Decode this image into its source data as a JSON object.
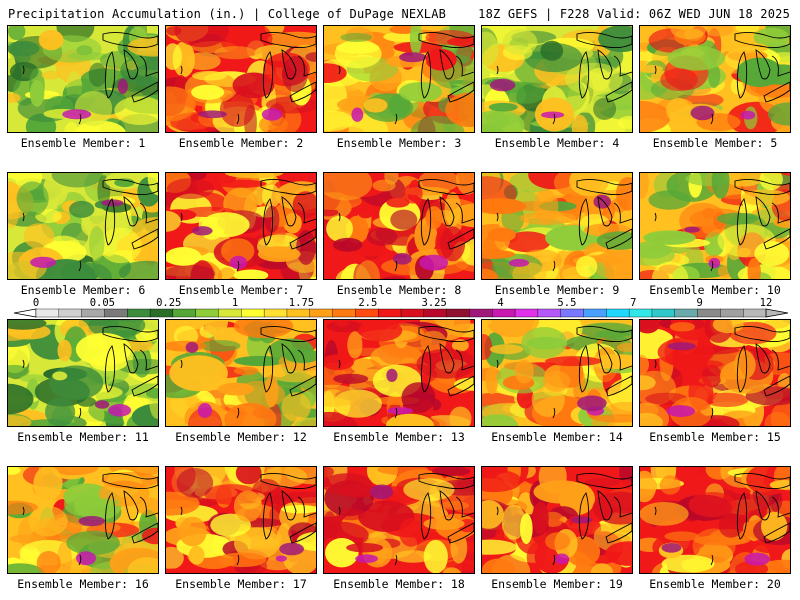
{
  "header": {
    "title": "Precipitation Accumulation (in.) | College of DuPage NEXLAB",
    "valid": "18Z GEFS | F228 Valid: 06Z WED JUN 18 2025"
  },
  "legend": {
    "labels": [
      "0",
      "0.05",
      "0.25",
      "1",
      "1.75",
      "2.5",
      "3.25",
      "4",
      "5.5",
      "7",
      "9",
      "12"
    ],
    "colors": [
      "#e8e8e8",
      "#cfcfcf",
      "#a8a8a8",
      "#7a7a7a",
      "#3c8c3c",
      "#2a6e2a",
      "#55a838",
      "#8fcc3a",
      "#d8e838",
      "#ffff33",
      "#ffe033",
      "#ffc020",
      "#ffa018",
      "#ff7a10",
      "#ff4a10",
      "#f01818",
      "#d8101e",
      "#b8082a",
      "#901030",
      "#a0187a",
      "#c818b0",
      "#e030e8",
      "#b458f8",
      "#7a78ff",
      "#4aa0ff",
      "#20d8ff",
      "#30e8e8",
      "#30c8c8",
      "#6aaaaa",
      "#8a8a8a",
      "#a0a0a0",
      "#b8b8b8"
    ]
  },
  "panels": [
    {
      "caption": "Ensemble Member: 1",
      "tone": "green"
    },
    {
      "caption": "Ensemble Member: 2",
      "tone": "red"
    },
    {
      "caption": "Ensemble Member: 3",
      "tone": "mixed"
    },
    {
      "caption": "Ensemble Member: 4",
      "tone": "green"
    },
    {
      "caption": "Ensemble Member: 5",
      "tone": "mixed"
    },
    {
      "caption": "Ensemble Member: 6",
      "tone": "green"
    },
    {
      "caption": "Ensemble Member: 7",
      "tone": "red"
    },
    {
      "caption": "Ensemble Member: 8",
      "tone": "red"
    },
    {
      "caption": "Ensemble Member: 9",
      "tone": "mixed"
    },
    {
      "caption": "Ensemble Member: 10",
      "tone": "mixed"
    },
    {
      "caption": "Ensemble Member: 11",
      "tone": "green"
    },
    {
      "caption": "Ensemble Member: 12",
      "tone": "mixed"
    },
    {
      "caption": "Ensemble Member: 13",
      "tone": "red"
    },
    {
      "caption": "Ensemble Member: 14",
      "tone": "mixed"
    },
    {
      "caption": "Ensemble Member: 15",
      "tone": "red"
    },
    {
      "caption": "Ensemble Member: 16",
      "tone": "mixed"
    },
    {
      "caption": "Ensemble Member: 17",
      "tone": "red"
    },
    {
      "caption": "Ensemble Member: 18",
      "tone": "red"
    },
    {
      "caption": "Ensemble Member: 19",
      "tone": "red"
    },
    {
      "caption": "Ensemble Member: 20",
      "tone": "red"
    }
  ]
}
